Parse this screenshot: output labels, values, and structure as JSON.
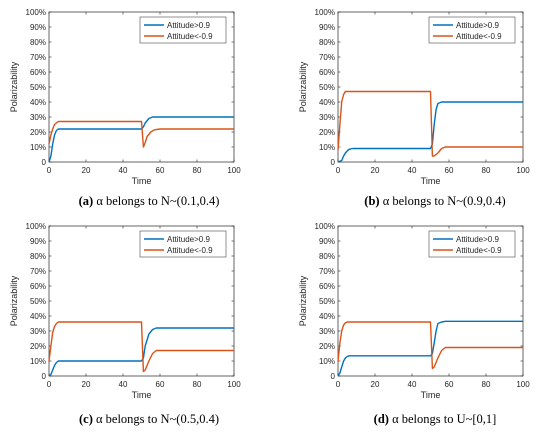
{
  "colors": {
    "series1": "#0072BD",
    "series2": "#D95319",
    "axis": "#262626"
  },
  "chart_data": [
    {
      "type": "line",
      "ylabel": "Polarizability",
      "xlabel": "Time",
      "xlim": [
        0,
        100
      ],
      "ylim": [
        0,
        1
      ],
      "x_ticks": [
        "0",
        "20",
        "40",
        "60",
        "80",
        "100"
      ],
      "y_ticks": [
        "0",
        "10%",
        "20%",
        "30%",
        "40%",
        "50%",
        "60%",
        "70%",
        "80%",
        "90%",
        "100%"
      ],
      "legend_position": "top-right",
      "caption": {
        "tag": "(a)",
        "text": " α belongs to N~(0.1,0.4)"
      },
      "series": [
        {
          "name": "Attitude>0.9",
          "x": [
            0,
            1,
            2,
            3,
            4,
            5,
            6,
            8,
            10,
            50,
            51,
            52,
            54,
            56,
            58,
            100
          ],
          "y": [
            0.0,
            0.04,
            0.12,
            0.18,
            0.21,
            0.22,
            0.22,
            0.22,
            0.22,
            0.22,
            0.235,
            0.26,
            0.29,
            0.3,
            0.3,
            0.3
          ]
        },
        {
          "name": "Attitude<-0.9",
          "x": [
            0,
            1,
            2,
            3,
            4,
            5,
            6,
            8,
            10,
            50,
            51,
            52,
            53,
            55,
            57,
            60,
            100
          ],
          "y": [
            0.12,
            0.18,
            0.22,
            0.25,
            0.26,
            0.27,
            0.27,
            0.27,
            0.27,
            0.27,
            0.1,
            0.13,
            0.17,
            0.2,
            0.215,
            0.22,
            0.22
          ]
        }
      ]
    },
    {
      "type": "line",
      "ylabel": "Polarizability",
      "xlabel": "Time",
      "xlim": [
        0,
        100
      ],
      "ylim": [
        0,
        1
      ],
      "x_ticks": [
        "0",
        "20",
        "40",
        "60",
        "80",
        "100"
      ],
      "y_ticks": [
        "0",
        "10%",
        "20%",
        "30%",
        "40%",
        "50%",
        "60%",
        "70%",
        "80%",
        "90%",
        "100%"
      ],
      "legend_position": "top-right",
      "caption": {
        "tag": "(b)",
        "text": " α belongs to N~(0.9,0.4)"
      },
      "series": [
        {
          "name": "Attitude>0.9",
          "x": [
            0,
            2,
            3,
            4,
            5,
            6,
            8,
            10,
            50,
            51,
            52,
            53,
            54,
            56,
            60,
            100
          ],
          "y": [
            0.0,
            0.01,
            0.04,
            0.06,
            0.075,
            0.085,
            0.09,
            0.09,
            0.09,
            0.12,
            0.25,
            0.35,
            0.39,
            0.4,
            0.4,
            0.4
          ]
        },
        {
          "name": "Attitude<-0.9",
          "x": [
            0,
            1,
            2,
            3,
            4,
            5,
            6,
            8,
            50,
            51,
            52,
            54,
            56,
            58,
            100
          ],
          "y": [
            0.08,
            0.25,
            0.4,
            0.45,
            0.47,
            0.47,
            0.47,
            0.47,
            0.47,
            0.04,
            0.04,
            0.06,
            0.09,
            0.1,
            0.1
          ]
        }
      ]
    },
    {
      "type": "line",
      "ylabel": "Polarizability",
      "xlabel": "Time",
      "xlim": [
        0,
        100
      ],
      "ylim": [
        0,
        1
      ],
      "x_ticks": [
        "0",
        "20",
        "40",
        "60",
        "80",
        "100"
      ],
      "y_ticks": [
        "0",
        "10%",
        "20%",
        "30%",
        "40%",
        "50%",
        "60%",
        "70%",
        "80%",
        "90%",
        "100%"
      ],
      "legend_position": "top-right",
      "caption": {
        "tag": "(c)",
        "text": " α belongs to N~(0.5,0.4)"
      },
      "series": [
        {
          "name": "Attitude>0.9",
          "x": [
            0,
            1,
            2,
            3,
            4,
            5,
            6,
            8,
            50,
            51,
            52,
            54,
            56,
            58,
            100
          ],
          "y": [
            0.0,
            0.01,
            0.04,
            0.07,
            0.09,
            0.1,
            0.1,
            0.1,
            0.1,
            0.12,
            0.2,
            0.28,
            0.31,
            0.32,
            0.32
          ]
        },
        {
          "name": "Attitude<-0.9",
          "x": [
            0,
            1,
            2,
            3,
            4,
            5,
            6,
            8,
            50,
            51,
            52,
            54,
            56,
            58,
            100
          ],
          "y": [
            0.1,
            0.2,
            0.29,
            0.33,
            0.35,
            0.36,
            0.36,
            0.36,
            0.36,
            0.03,
            0.04,
            0.1,
            0.15,
            0.17,
            0.17
          ]
        }
      ]
    },
    {
      "type": "line",
      "ylabel": "Polarizability",
      "xlabel": "Time",
      "xlim": [
        0,
        100
      ],
      "ylim": [
        0,
        1
      ],
      "x_ticks": [
        "0",
        "20",
        "40",
        "60",
        "80",
        "100"
      ],
      "y_ticks": [
        "0",
        "10%",
        "20%",
        "30%",
        "40%",
        "50%",
        "60%",
        "70%",
        "80%",
        "90%",
        "100%"
      ],
      "legend_position": "top-right",
      "caption": {
        "tag": "(d)",
        "text": " α belongs to U~[0,1]"
      },
      "series": [
        {
          "name": "Attitude>0.9",
          "x": [
            0,
            1,
            2,
            3,
            4,
            5,
            6,
            8,
            50,
            51,
            52,
            53,
            54,
            56,
            58,
            100
          ],
          "y": [
            0.0,
            0.02,
            0.06,
            0.1,
            0.12,
            0.13,
            0.135,
            0.135,
            0.135,
            0.15,
            0.22,
            0.3,
            0.35,
            0.36,
            0.365,
            0.365
          ]
        },
        {
          "name": "Attitude<-0.9",
          "x": [
            0,
            1,
            2,
            3,
            4,
            5,
            6,
            8,
            50,
            51,
            52,
            54,
            56,
            58,
            100
          ],
          "y": [
            0.1,
            0.22,
            0.3,
            0.34,
            0.355,
            0.36,
            0.36,
            0.36,
            0.36,
            0.05,
            0.06,
            0.12,
            0.17,
            0.19,
            0.19
          ]
        }
      ]
    }
  ]
}
